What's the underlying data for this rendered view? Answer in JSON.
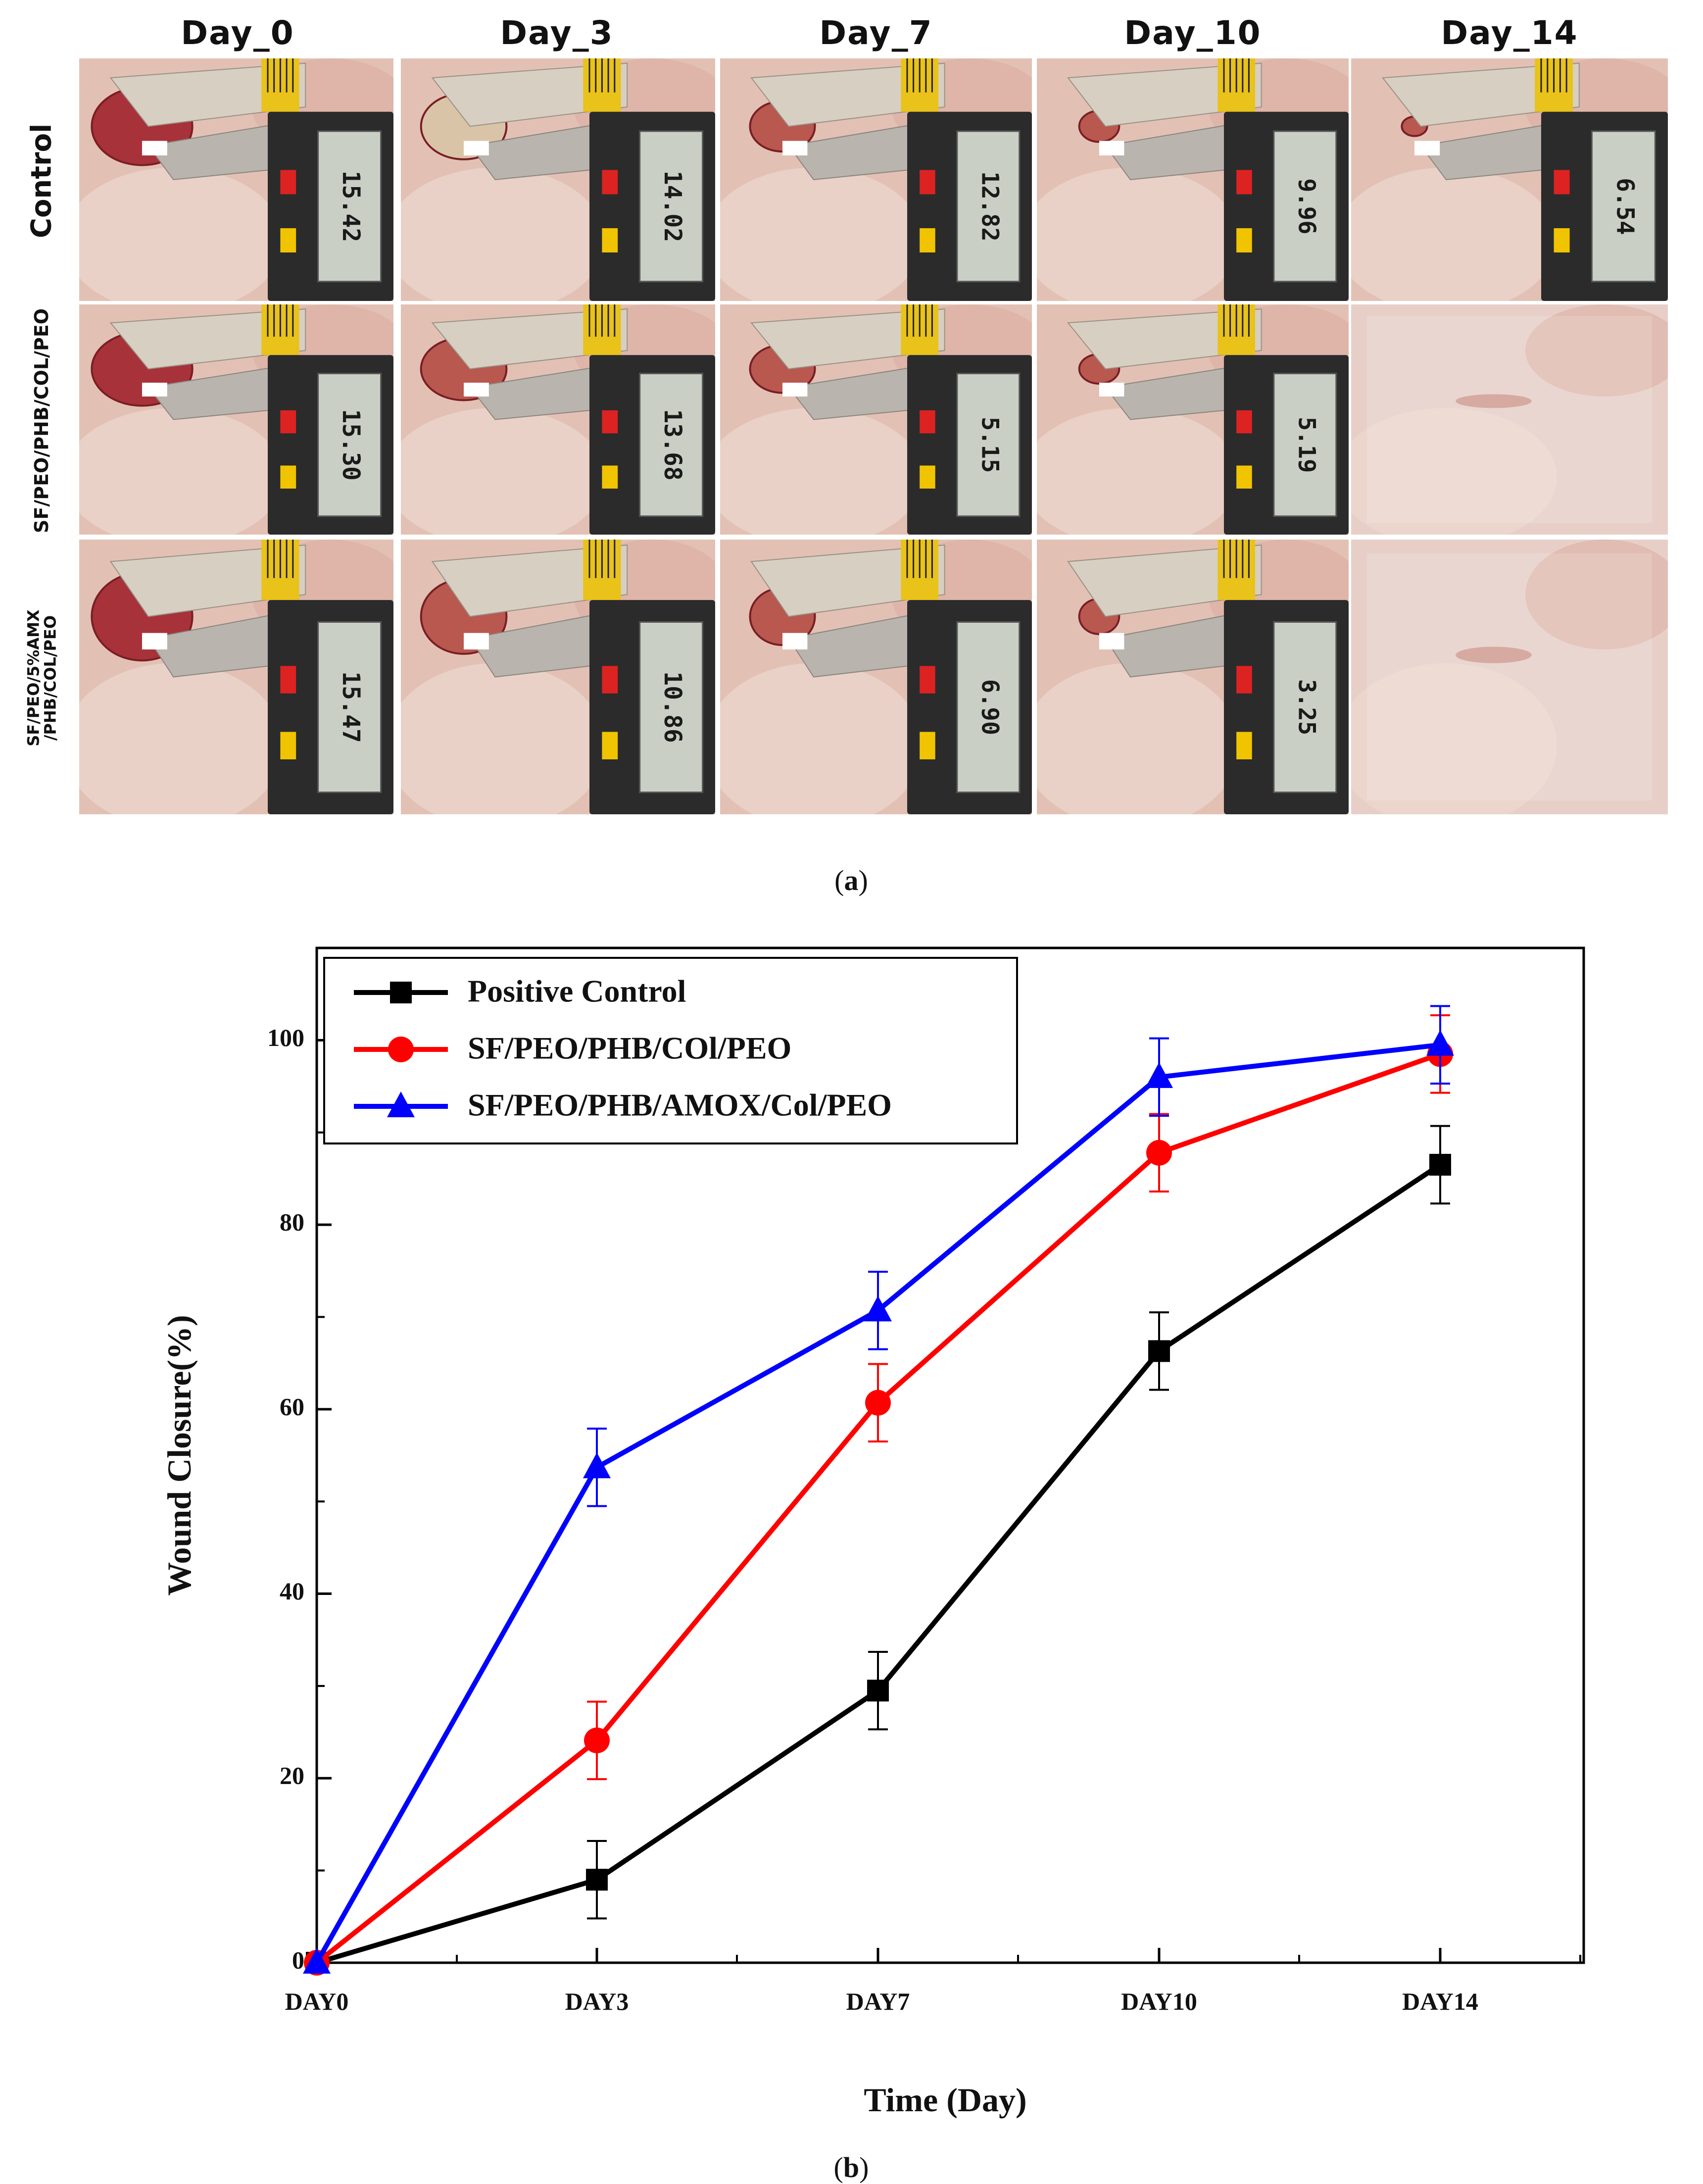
{
  "panel_a": {
    "day_headers": [
      "Day_0",
      "Day_3",
      "Day_7",
      "Day_10",
      "Day_14"
    ],
    "row_labels": [
      "Control",
      "SF/PEO/PHB/COL/PEO",
      "SF/PEO/5%AMX /PHB/COL/PEO"
    ],
    "caliper_readings": [
      [
        "15.42",
        "14.02",
        "12.82",
        "9.96",
        "6.54"
      ],
      [
        "15.30",
        "13.68",
        "5.15",
        "5.19",
        ""
      ],
      [
        "15.47",
        "10.86",
        "6.90",
        "3.25",
        ""
      ]
    ],
    "caption_letter": "a"
  },
  "panel_b": {
    "caption_letter": "b"
  },
  "colors": {
    "positive_control": "#000000",
    "sf_peo_phb_col_peo": "#ff0000",
    "sf_peo_phb_amox_col_peo": "#0000ff"
  },
  "chart_data": {
    "type": "line",
    "title": "",
    "xlabel": "Time (Day)",
    "ylabel": "Wound Closure(%)",
    "categories": [
      "DAY0",
      "DAY3",
      "DAY7",
      "DAY10",
      "DAY14"
    ],
    "ylim": [
      0,
      110
    ],
    "yticks": [
      0,
      20,
      40,
      60,
      80,
      100
    ],
    "grid": false,
    "legend_position": "top-left",
    "series": [
      {
        "name": "Positive Control",
        "color": "#000000",
        "marker": "square",
        "values": [
          0,
          9.0,
          29.5,
          66.3,
          86.5
        ],
        "errors": [
          0,
          4.2,
          4.2,
          4.2,
          4.2
        ]
      },
      {
        "name": "SF/PEO/PHB/COl/PEO",
        "color": "#ff0000",
        "marker": "circle",
        "values": [
          0,
          24.1,
          60.7,
          87.8,
          98.5
        ],
        "errors": [
          0,
          4.2,
          4.2,
          4.2,
          4.2
        ]
      },
      {
        "name": "SF/PEO/PHB/AMOX/Col/PEO",
        "color": "#0000ff",
        "marker": "triangle",
        "values": [
          0,
          53.7,
          70.7,
          96.0,
          99.5
        ],
        "errors": [
          0,
          4.2,
          4.2,
          4.2,
          4.2
        ]
      }
    ]
  }
}
